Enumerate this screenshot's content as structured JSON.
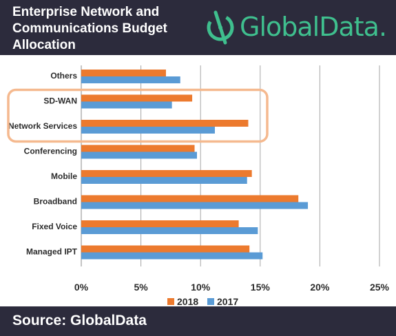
{
  "header": {
    "title_lines": [
      "Enterprise Network and",
      "Communications Budget",
      "Allocation"
    ],
    "brand": "GlobalData.",
    "brand_color": "#3fbf8e",
    "background": "#2c2b3c"
  },
  "footer": {
    "source": "Source: GlobalData"
  },
  "chart_data": {
    "type": "bar",
    "orientation": "horizontal",
    "categories": [
      "Others",
      "SD-WAN",
      "Network Services",
      "Conferencing",
      "Mobile",
      "Broadband",
      "Fixed Voice",
      "Managed IPT"
    ],
    "series": [
      {
        "name": "2018",
        "color": "#ec7a2e",
        "values": [
          7.1,
          9.3,
          14.0,
          9.5,
          14.3,
          18.2,
          13.2,
          14.1
        ]
      },
      {
        "name": "2017",
        "color": "#5a9bd5",
        "values": [
          8.3,
          7.6,
          11.2,
          9.7,
          13.9,
          19.0,
          14.8,
          15.2
        ]
      }
    ],
    "x_ticks": [
      "0%",
      "5%",
      "10%",
      "15%",
      "20%",
      "25%"
    ],
    "xlim": [
      0,
      25
    ],
    "grid": true,
    "legend_position": "bottom",
    "highlight": {
      "categories": [
        "SD-WAN",
        "Network Services"
      ],
      "color": "#f5b98f"
    }
  }
}
